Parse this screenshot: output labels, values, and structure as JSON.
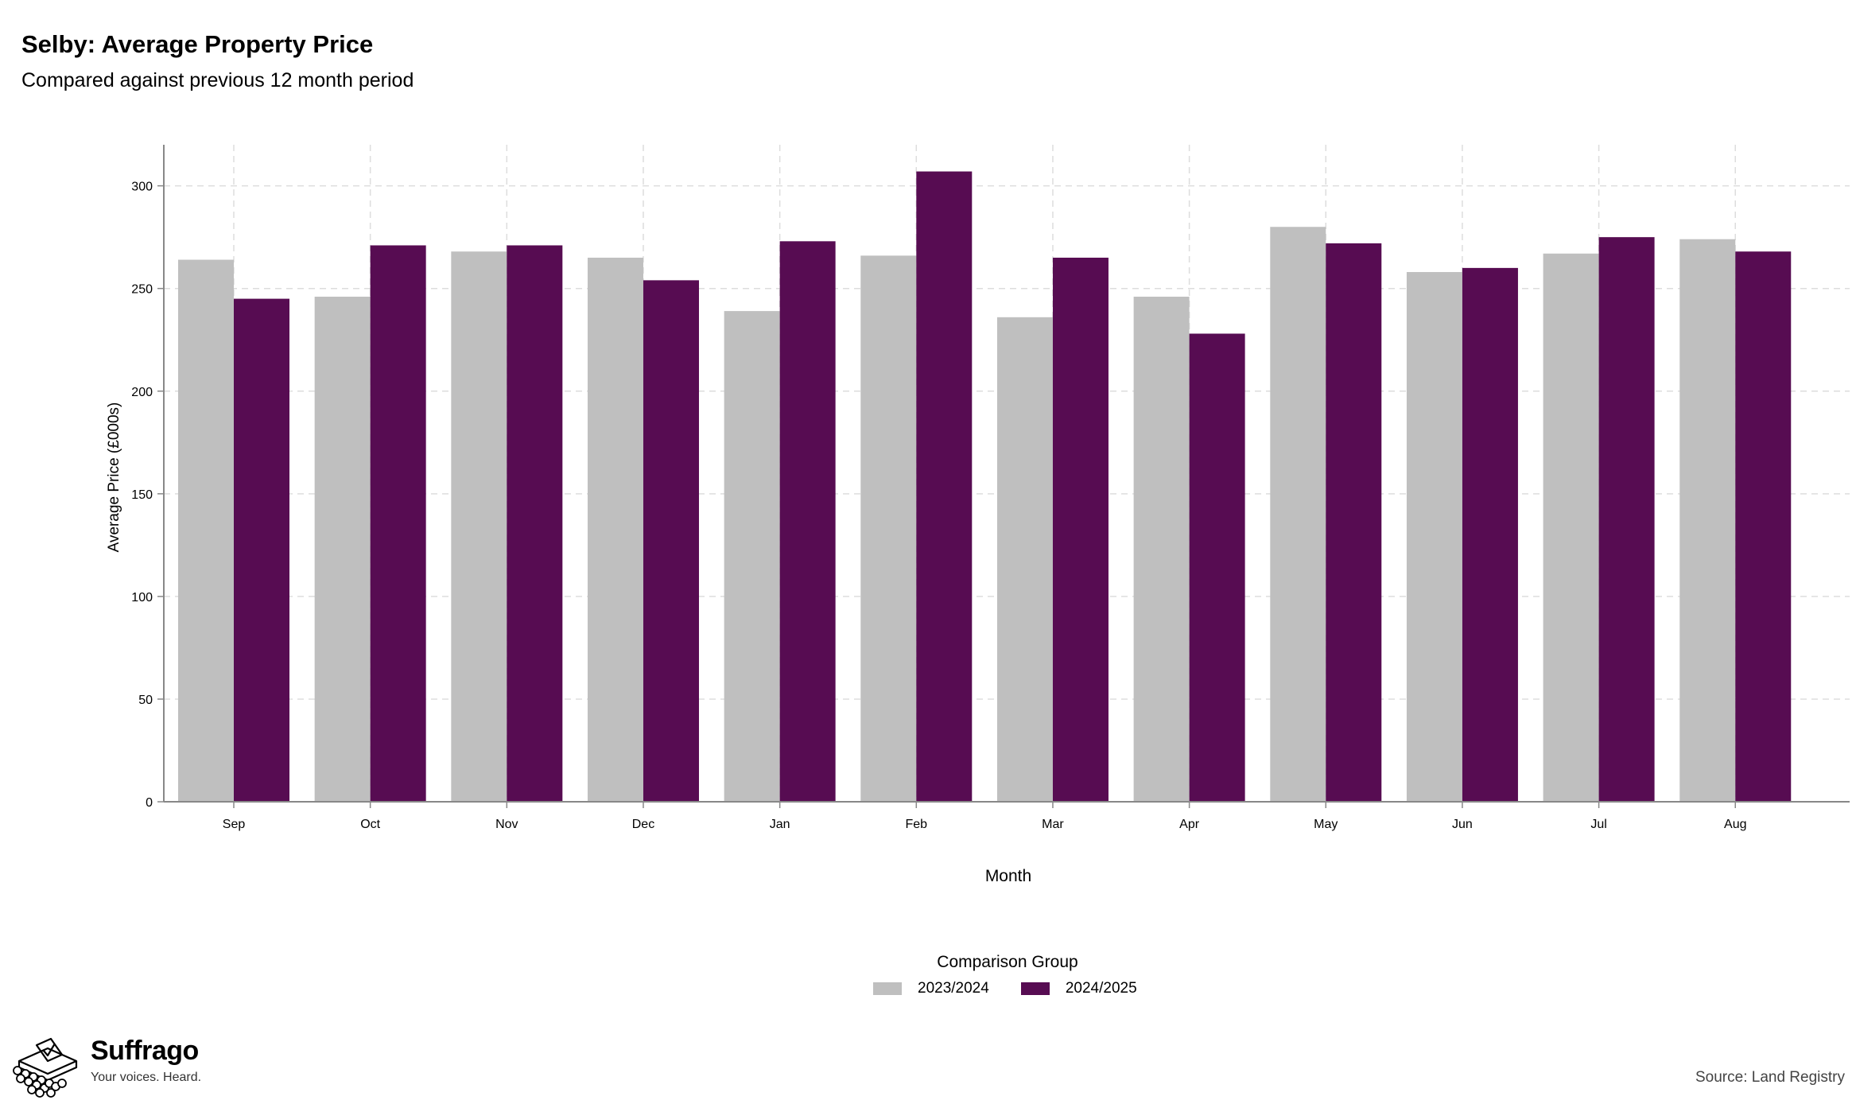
{
  "header": {
    "title": "Selby: Average Property Price",
    "subtitle": "Compared against previous 12 month period"
  },
  "legend": {
    "title": "Comparison Group",
    "items": [
      {
        "label": "2023/2024",
        "color": "#bfbfbf"
      },
      {
        "label": "2024/2025",
        "color": "#570c52"
      }
    ]
  },
  "footer": {
    "brand": "Suffrago",
    "tagline": "Your voices. Heard.",
    "source": "Source: Land Registry"
  },
  "colors": {
    "series_2023_2024": "#bfbfbf",
    "series_2024_2025": "#570c52",
    "grid": "#dddddd",
    "axis": "#888888"
  },
  "chart_data": {
    "type": "bar",
    "title": "Selby: Average Property Price",
    "subtitle": "Compared against previous 12 month period",
    "xlabel": "Month",
    "ylabel": "Average Price (£000s)",
    "ylim": [
      0,
      320
    ],
    "yticks": [
      0,
      50,
      100,
      150,
      200,
      250,
      300
    ],
    "grid": true,
    "legend_position": "bottom",
    "categories": [
      "Sep",
      "Oct",
      "Nov",
      "Dec",
      "Jan",
      "Feb",
      "Mar",
      "Apr",
      "May",
      "Jun",
      "Jul",
      "Aug"
    ],
    "series": [
      {
        "name": "2023/2024",
        "color": "#bfbfbf",
        "values": [
          264,
          246,
          268,
          265,
          239,
          266,
          236,
          246,
          280,
          258,
          267,
          274
        ]
      },
      {
        "name": "2024/2025",
        "color": "#570c52",
        "values": [
          245,
          271,
          271,
          254,
          273,
          307,
          265,
          228,
          272,
          260,
          275,
          268
        ]
      }
    ]
  }
}
